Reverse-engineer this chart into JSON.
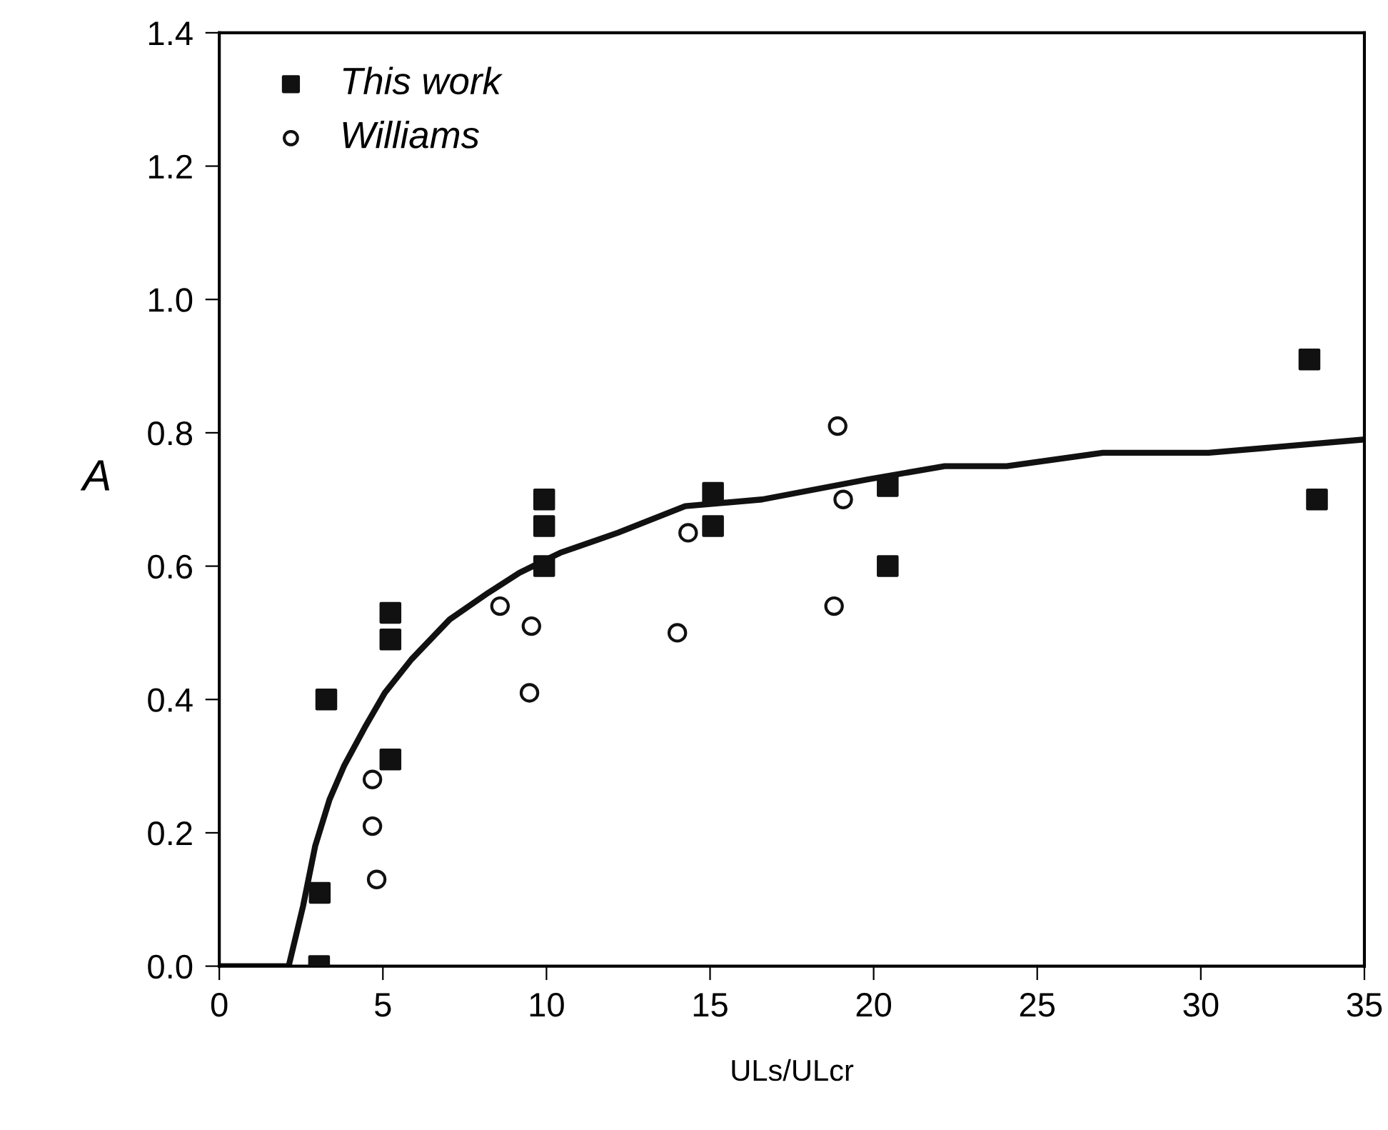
{
  "chart_data": {
    "type": "scatter",
    "xlabel": "ULs/ULcr",
    "ylabel": "A",
    "xlim": [
      0,
      35
    ],
    "ylim": [
      0,
      1.4
    ],
    "xticks": [
      0,
      5,
      10,
      15,
      20,
      25,
      30,
      35
    ],
    "yticks": [
      {
        "value": 0,
        "label": "0.0"
      },
      {
        "value": 0.2,
        "label": "0.2"
      },
      {
        "value": 0.4,
        "label": "0.4"
      },
      {
        "value": 0.6,
        "label": "0.6"
      },
      {
        "value": 0.8,
        "label": "0.8"
      },
      {
        "value": 1.0,
        "label": "1.0"
      },
      {
        "value": 1.2,
        "label": "1.2"
      },
      {
        "value": 1.4,
        "label": "1.4"
      }
    ],
    "grid": false,
    "legend": "top left",
    "series": [
      {
        "name": "This work",
        "marker": "square",
        "color": "#111111",
        "x": [
          3.05,
          3.07,
          3.27,
          5.23,
          5.23,
          5.23,
          9.93,
          9.93,
          9.93,
          15.09,
          15.09,
          20.43,
          20.43,
          33.32,
          33.55
        ],
        "values": [
          0.0,
          0.11,
          0.4,
          0.53,
          0.49,
          0.31,
          0.7,
          0.66,
          0.6,
          0.71,
          0.66,
          0.72,
          0.6,
          0.91,
          0.7
        ]
      },
      {
        "name": "Williams",
        "marker": "circle",
        "color": "#111111",
        "x": [
          4.68,
          4.68,
          4.81,
          8.58,
          9.54,
          9.48,
          14.33,
          14.0,
          19.07,
          18.79,
          18.9
        ],
        "values": [
          0.28,
          0.21,
          0.13,
          0.54,
          0.51,
          0.41,
          0.65,
          0.5,
          0.7,
          0.54,
          0.81
        ]
      },
      {
        "type": "line",
        "color": "#111111",
        "x": [
          0,
          2.12,
          2.56,
          2.93,
          3.37,
          3.81,
          4.47,
          5.06,
          5.87,
          7.04,
          8.22,
          9.17,
          10.42,
          12.18,
          14.24,
          16.59,
          19.81,
          22.17,
          24.07,
          27.01,
          30.24,
          35
        ],
        "values": [
          0,
          0,
          0.09,
          0.18,
          0.25,
          0.3,
          0.36,
          0.41,
          0.46,
          0.52,
          0.56,
          0.59,
          0.62,
          0.65,
          0.69,
          0.7,
          0.73,
          0.75,
          0.75,
          0.77,
          0.77,
          0.79
        ]
      }
    ]
  }
}
